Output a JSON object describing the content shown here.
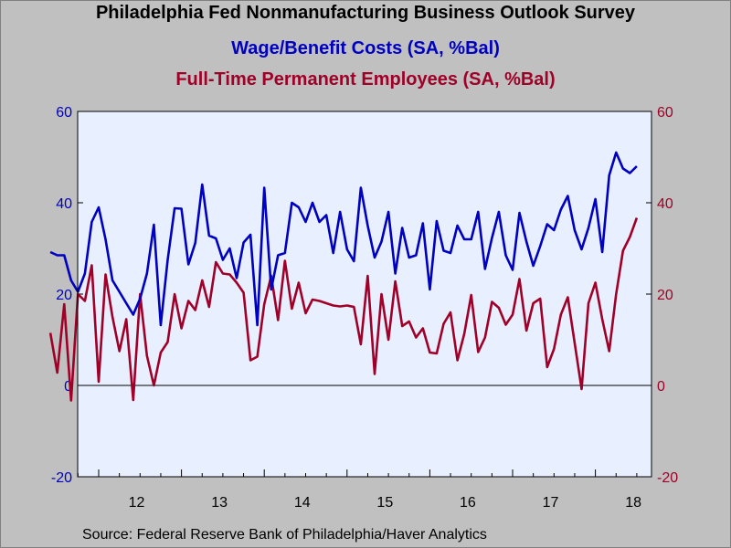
{
  "chart_data": {
    "type": "line",
    "title": "Philadelphia Fed Nonmanufacturing Business Outlook Survey",
    "subtitle_lines": [
      "Wage/Benefit Costs (SA, %Bal)",
      "Full-Time Permanent Employees (SA, %Bal)"
    ],
    "source": "Source:  Federal Reserve Bank of Philadelphia/Haver Analytics",
    "x_start": "2011-06",
    "frequency": "monthly",
    "x_tick_labels": [
      "12",
      "13",
      "14",
      "15",
      "16",
      "17",
      "18"
    ],
    "ylim": [
      -20,
      60
    ],
    "y_ticks": [
      -20,
      0,
      20,
      40,
      60
    ],
    "y_tick_labels_left": [
      "-20",
      "0",
      "20",
      "40",
      "60"
    ],
    "y_tick_labels_right": [
      "-20",
      "0",
      "20",
      "40",
      "60"
    ],
    "zero_line": true,
    "grid": false,
    "plot_background": "#e8f0ff",
    "series": [
      {
        "name": "Wage/Benefit Costs (SA, %Bal)",
        "color": "#0000c0",
        "values": [
          29.2,
          28.5,
          28.5,
          23.0,
          20.5,
          24.5,
          35.8,
          39.0,
          32.0,
          23.0,
          20.5,
          18.0,
          15.5,
          19.0,
          24.5,
          35.2,
          13.2,
          27.5,
          38.8,
          38.7,
          26.5,
          31.2,
          44.0,
          32.8,
          32.2,
          27.5,
          30.0,
          23.5,
          31.3,
          33.0,
          13.2,
          43.3,
          21.0,
          28.5,
          29.0,
          40.0,
          39.0,
          35.8,
          40.0,
          35.8,
          37.3,
          29.0,
          38.0,
          29.8,
          27.2,
          43.3,
          35.0,
          28.0,
          31.5,
          38.0,
          24.5,
          34.5,
          28.0,
          28.5,
          35.5,
          21.0,
          36.0,
          29.5,
          29.0,
          35.0,
          32.0,
          32.0,
          38.0,
          25.5,
          32.3,
          38.0,
          28.5,
          25.3,
          37.8,
          31.5,
          26.2,
          30.5,
          35.3,
          34.0,
          38.5,
          41.5,
          34.0,
          29.8,
          34.5,
          40.8,
          29.2,
          46.0,
          51.0,
          47.5,
          46.5,
          48.0
        ]
      },
      {
        "name": "Full-Time Permanent Employees (SA, %Bal)",
        "color": "#a00028",
        "values": [
          11.5,
          2.8,
          17.8,
          -3.3,
          20.0,
          18.5,
          26.3,
          0.8,
          24.3,
          15.0,
          7.5,
          14.5,
          -3.2,
          20.0,
          6.5,
          0.0,
          7.2,
          9.5,
          20.0,
          12.5,
          18.5,
          16.5,
          23.0,
          17.2,
          27.0,
          24.5,
          24.3,
          22.5,
          20.3,
          5.5,
          6.3,
          17.8,
          24.0,
          14.3,
          27.3,
          16.8,
          22.5,
          15.8,
          18.8,
          18.5,
          18.0,
          17.5,
          17.3,
          17.5,
          17.2,
          9.0,
          24.0,
          2.5,
          20.0,
          10.0,
          22.8,
          13.0,
          14.0,
          10.5,
          12.5,
          7.2,
          7.0,
          13.5,
          16.0,
          5.5,
          11.3,
          19.8,
          7.3,
          10.5,
          18.3,
          17.0,
          13.3,
          15.5,
          23.3,
          12.0,
          18.0,
          19.0,
          4.0,
          8.0,
          15.5,
          19.3,
          9.3,
          -0.8,
          18.0,
          22.5,
          14.5,
          7.5,
          20.0,
          29.5,
          32.5,
          36.7
        ]
      }
    ]
  }
}
